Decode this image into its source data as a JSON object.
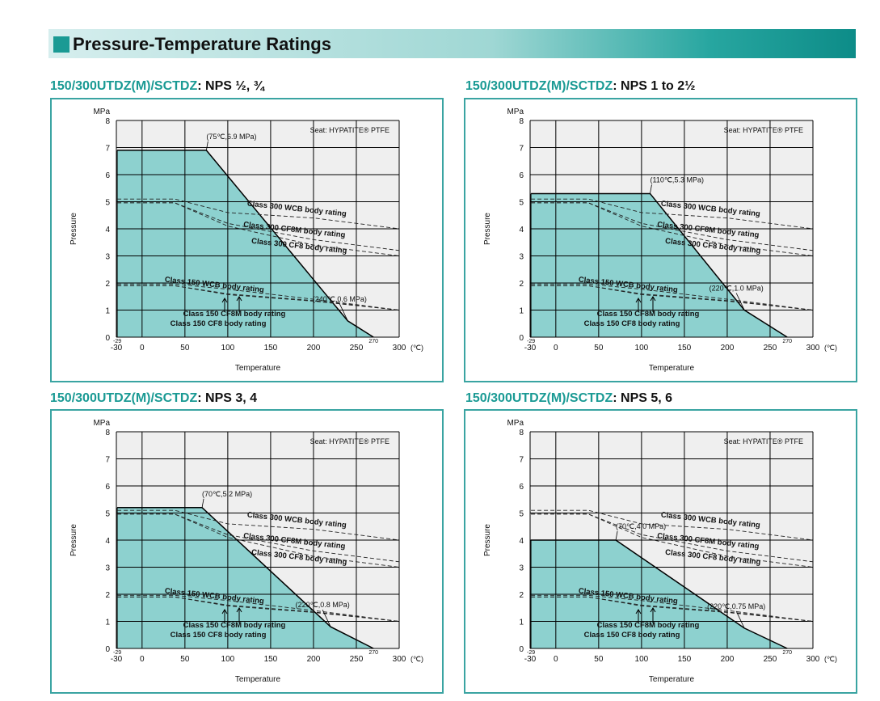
{
  "page_title": "Pressure-Temperature Ratings",
  "chart_data": [
    {
      "type": "area",
      "model": "150/300UTDZ(M)/SCTDZ",
      "size_label": ": NPS ½, ¾",
      "seat_label": "Seat: HYPATITE® PTFE",
      "ylabel": "Pressure",
      "yunit": "MPa",
      "xlabel": "Temperature",
      "xunit": "(℃)",
      "xlim": [
        -30,
        300
      ],
      "ylim": [
        0,
        8
      ],
      "x_ticks": [
        "-30",
        "0",
        "50",
        "100",
        "150",
        "200",
        "250",
        "300"
      ],
      "y_ticks": [
        "0",
        "1",
        "2",
        "3",
        "4",
        "5",
        "6",
        "7",
        "8"
      ],
      "x_min_label": "-29",
      "x_max_label": "270",
      "rating_series": {
        "name": "",
        "points": [
          [
            -29,
            6.9
          ],
          [
            75,
            6.9
          ],
          [
            240,
            0.6
          ],
          [
            270,
            0
          ]
        ]
      },
      "annotations": [
        {
          "text": "(75℃,6.9 MPa)",
          "point": [
            75,
            6.9
          ]
        },
        {
          "text": "(240℃,0.6 MPa)",
          "point": [
            240,
            0.6
          ]
        }
      ],
      "body_ratings": [
        {
          "name": "Class 300 WCB body rating",
          "points": [
            [
              -29,
              5.1
            ],
            [
              38,
              5.1
            ],
            [
              100,
              4.6
            ],
            [
              200,
              4.4
            ],
            [
              300,
              4.0
            ]
          ]
        },
        {
          "name": "Class 300 CF8M body rating",
          "points": [
            [
              -29,
              4.96
            ],
            [
              38,
              4.96
            ],
            [
              100,
              4.2
            ],
            [
              200,
              3.6
            ],
            [
              300,
              3.2
            ]
          ]
        },
        {
          "name": "Class 300 CF8 body rating",
          "points": [
            [
              -29,
              4.96
            ],
            [
              38,
              4.96
            ],
            [
              100,
              4.1
            ],
            [
              200,
              3.4
            ],
            [
              300,
              3.0
            ]
          ]
        },
        {
          "name": "Class 150 WCB body rating",
          "points": [
            [
              -29,
              1.96
            ],
            [
              38,
              1.96
            ],
            [
              100,
              1.77
            ],
            [
              200,
              1.4
            ],
            [
              300,
              1.0
            ]
          ]
        },
        {
          "name": "Class 150 CF8M body rating",
          "points": [
            [
              -29,
              1.9
            ],
            [
              38,
              1.9
            ],
            [
              100,
              1.6
            ],
            [
              200,
              1.35
            ],
            [
              300,
              1.0
            ]
          ]
        },
        {
          "name": "Class 150 CF8 body rating",
          "points": [
            [
              -29,
              1.9
            ],
            [
              38,
              1.9
            ],
            [
              100,
              1.57
            ],
            [
              200,
              1.33
            ],
            [
              300,
              1.0
            ]
          ]
        }
      ]
    },
    {
      "type": "area",
      "model": "150/300UTDZ(M)/SCTDZ",
      "size_label": ": NPS 1 to 2½",
      "seat_label": "Seat: HYPATITE® PTFE",
      "ylabel": "Pressure",
      "yunit": "MPa",
      "xlabel": "Temperature",
      "xunit": "(℃)",
      "xlim": [
        -30,
        300
      ],
      "ylim": [
        0,
        8
      ],
      "x_ticks": [
        "-30",
        "0",
        "50",
        "100",
        "150",
        "200",
        "250",
        "300"
      ],
      "y_ticks": [
        "0",
        "1",
        "2",
        "3",
        "4",
        "5",
        "6",
        "7",
        "8"
      ],
      "x_min_label": "-29",
      "x_max_label": "270",
      "rating_series": {
        "name": "",
        "points": [
          [
            -29,
            5.3
          ],
          [
            110,
            5.3
          ],
          [
            220,
            1.0
          ],
          [
            270,
            0
          ]
        ]
      },
      "annotations": [
        {
          "text": "(110℃,5.3 MPa)",
          "point": [
            110,
            5.3
          ]
        },
        {
          "text": "(220℃,1.0 MPa)",
          "point": [
            220,
            1.0
          ]
        }
      ],
      "body_ratings": [
        {
          "name": "Class 300 WCB body rating",
          "points": [
            [
              -29,
              5.1
            ],
            [
              38,
              5.1
            ],
            [
              100,
              4.6
            ],
            [
              200,
              4.4
            ],
            [
              300,
              4.0
            ]
          ]
        },
        {
          "name": "Class 300 CF8M body rating",
          "points": [
            [
              -29,
              4.96
            ],
            [
              38,
              4.96
            ],
            [
              100,
              4.2
            ],
            [
              200,
              3.6
            ],
            [
              300,
              3.2
            ]
          ]
        },
        {
          "name": "Class 300 CF8 body rating",
          "points": [
            [
              -29,
              4.96
            ],
            [
              38,
              4.96
            ],
            [
              100,
              4.1
            ],
            [
              200,
              3.4
            ],
            [
              300,
              3.0
            ]
          ]
        },
        {
          "name": "Class 150 WCB body rating",
          "points": [
            [
              -29,
              1.96
            ],
            [
              38,
              1.96
            ],
            [
              100,
              1.77
            ],
            [
              200,
              1.4
            ],
            [
              300,
              1.0
            ]
          ]
        },
        {
          "name": "Class 150 CF8M body rating",
          "points": [
            [
              -29,
              1.9
            ],
            [
              38,
              1.9
            ],
            [
              100,
              1.6
            ],
            [
              200,
              1.35
            ],
            [
              300,
              1.0
            ]
          ]
        },
        {
          "name": "Class 150 CF8 body rating",
          "points": [
            [
              -29,
              1.9
            ],
            [
              38,
              1.9
            ],
            [
              100,
              1.57
            ],
            [
              200,
              1.33
            ],
            [
              300,
              1.0
            ]
          ]
        }
      ]
    },
    {
      "type": "area",
      "model": "150/300UTDZ(M)/SCTDZ",
      "size_label": ": NPS 3, 4",
      "seat_label": "Seat: HYPATITE® PTFE",
      "ylabel": "Pressure",
      "yunit": "MPa",
      "xlabel": "Temperature",
      "xunit": "(℃)",
      "xlim": [
        -30,
        300
      ],
      "ylim": [
        0,
        8
      ],
      "x_ticks": [
        "-30",
        "0",
        "50",
        "100",
        "150",
        "200",
        "250",
        "300"
      ],
      "y_ticks": [
        "0",
        "1",
        "2",
        "3",
        "4",
        "5",
        "6",
        "7",
        "8"
      ],
      "x_min_label": "-29",
      "x_max_label": "270",
      "rating_series": {
        "name": "",
        "points": [
          [
            -29,
            5.2
          ],
          [
            70,
            5.2
          ],
          [
            220,
            0.8
          ],
          [
            270,
            0
          ]
        ]
      },
      "annotations": [
        {
          "text": "(70℃,5.2 MPa)",
          "point": [
            70,
            5.2
          ]
        },
        {
          "text": "(220℃,0.8 MPa)",
          "point": [
            220,
            0.8
          ]
        }
      ],
      "body_ratings": [
        {
          "name": "Class 300 WCB body rating",
          "points": [
            [
              -29,
              5.1
            ],
            [
              38,
              5.1
            ],
            [
              100,
              4.6
            ],
            [
              200,
              4.4
            ],
            [
              300,
              4.0
            ]
          ]
        },
        {
          "name": "Class 300 CF8M body rating",
          "points": [
            [
              -29,
              4.96
            ],
            [
              38,
              4.96
            ],
            [
              100,
              4.2
            ],
            [
              200,
              3.6
            ],
            [
              300,
              3.2
            ]
          ]
        },
        {
          "name": "Class 300 CF8 body rating",
          "points": [
            [
              -29,
              4.96
            ],
            [
              38,
              4.96
            ],
            [
              100,
              4.1
            ],
            [
              200,
              3.4
            ],
            [
              300,
              3.0
            ]
          ]
        },
        {
          "name": "Class 150 WCB body rating",
          "points": [
            [
              -29,
              1.96
            ],
            [
              38,
              1.96
            ],
            [
              100,
              1.77
            ],
            [
              200,
              1.4
            ],
            [
              300,
              1.0
            ]
          ]
        },
        {
          "name": "Class 150 CF8M body rating",
          "points": [
            [
              -29,
              1.9
            ],
            [
              38,
              1.9
            ],
            [
              100,
              1.6
            ],
            [
              200,
              1.35
            ],
            [
              300,
              1.0
            ]
          ]
        },
        {
          "name": "Class 150 CF8 body rating",
          "points": [
            [
              -29,
              1.9
            ],
            [
              38,
              1.9
            ],
            [
              100,
              1.57
            ],
            [
              200,
              1.33
            ],
            [
              300,
              1.0
            ]
          ]
        }
      ]
    },
    {
      "type": "area",
      "model": "150/300UTDZ(M)/SCTDZ",
      "size_label": ": NPS 5, 6",
      "seat_label": "Seat: HYPATITE® PTFE",
      "ylabel": "Pressure",
      "yunit": "MPa",
      "xlabel": "Temperature",
      "xunit": "(℃)",
      "xlim": [
        -30,
        300
      ],
      "ylim": [
        0,
        8
      ],
      "x_ticks": [
        "-30",
        "0",
        "50",
        "100",
        "150",
        "200",
        "250",
        "300"
      ],
      "y_ticks": [
        "0",
        "1",
        "2",
        "3",
        "4",
        "5",
        "6",
        "7",
        "8"
      ],
      "x_min_label": "-29",
      "x_max_label": "270",
      "rating_series": {
        "name": "",
        "points": [
          [
            -29,
            4.0
          ],
          [
            70,
            4.0
          ],
          [
            220,
            0.75
          ],
          [
            270,
            0
          ]
        ]
      },
      "annotations": [
        {
          "text": "(70℃,4.0 MPa)",
          "point": [
            70,
            4.0
          ]
        },
        {
          "text": "(220℃,0.75 MPa)",
          "point": [
            220,
            0.75
          ]
        }
      ],
      "body_ratings": [
        {
          "name": "Class 300 WCB body rating",
          "points": [
            [
              -29,
              5.1
            ],
            [
              38,
              5.1
            ],
            [
              100,
              4.6
            ],
            [
              200,
              4.4
            ],
            [
              300,
              4.0
            ]
          ]
        },
        {
          "name": "Class 300 CF8M body rating",
          "points": [
            [
              -29,
              4.96
            ],
            [
              38,
              4.96
            ],
            [
              100,
              4.2
            ],
            [
              200,
              3.6
            ],
            [
              300,
              3.2
            ]
          ]
        },
        {
          "name": "Class 300 CF8 body rating",
          "points": [
            [
              -29,
              4.96
            ],
            [
              38,
              4.96
            ],
            [
              100,
              4.1
            ],
            [
              200,
              3.4
            ],
            [
              300,
              3.0
            ]
          ]
        },
        {
          "name": "Class 150 WCB body rating",
          "points": [
            [
              -29,
              1.96
            ],
            [
              38,
              1.96
            ],
            [
              100,
              1.77
            ],
            [
              200,
              1.4
            ],
            [
              300,
              1.0
            ]
          ]
        },
        {
          "name": "Class 150 CF8M body rating",
          "points": [
            [
              -29,
              1.9
            ],
            [
              38,
              1.9
            ],
            [
              100,
              1.6
            ],
            [
              200,
              1.35
            ],
            [
              300,
              1.0
            ]
          ]
        },
        {
          "name": "Class 150 CF8 body rating",
          "points": [
            [
              -29,
              1.9
            ],
            [
              38,
              1.9
            ],
            [
              100,
              1.57
            ],
            [
              200,
              1.33
            ],
            [
              300,
              1.0
            ]
          ]
        }
      ]
    }
  ],
  "colors": {
    "accent": "#1a9a94",
    "panel_border": "#3aa4a2",
    "rating_fill": "#8dd1cf",
    "plot_bg": "#efefef"
  }
}
